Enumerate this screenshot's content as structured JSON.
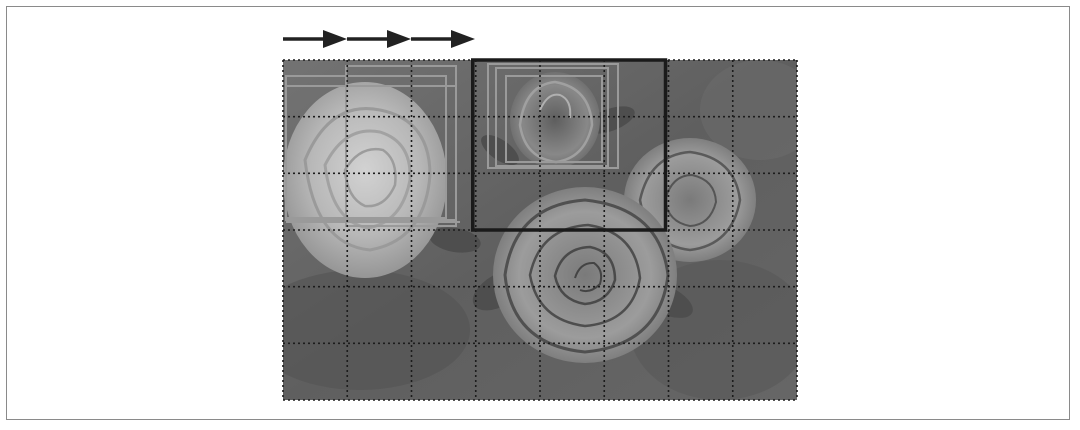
{
  "figure": {
    "image_subject": "roses-photo",
    "colors": {
      "frame_border": "#8a8a8a",
      "arrow": "#222222",
      "grid_line": "#1c1c1c",
      "window_stroke": "#1a1a1a",
      "anchor_box_stroke": "#9a9a9a",
      "photo_background": "#6e6e6e"
    },
    "grid": {
      "columns": 8,
      "rows": 6,
      "line_style": "dotted"
    },
    "slide_arrows": {
      "count": 3,
      "direction": "right"
    },
    "sliding_window": {
      "span_columns": 3,
      "span_rows": 3,
      "start_column": 3,
      "start_row": 0
    },
    "anchor_box_groups": 2
  }
}
